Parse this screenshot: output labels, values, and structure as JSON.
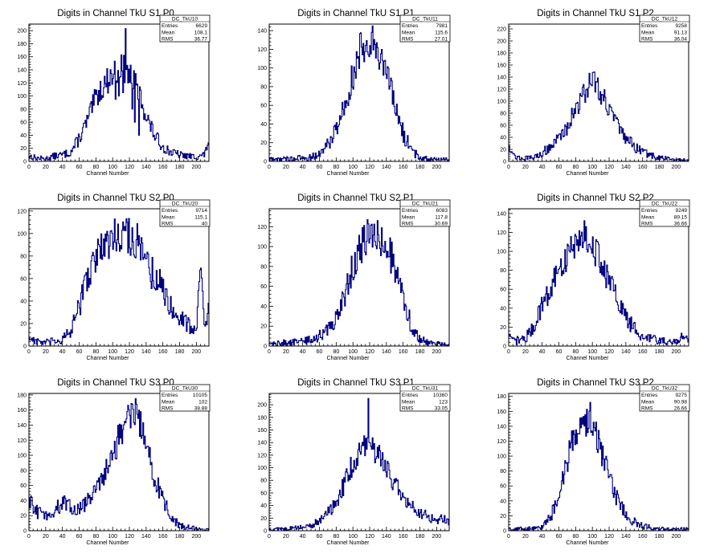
{
  "panel_titles": [
    "Digits in Channel TkU S1 P0",
    "Digits in Channel TkU S1 P1",
    "Digits in Channel TkU S1 P2",
    "Digits in Channel TkU S2 P0",
    "Digits in Channel TkU S2 P1",
    "Digits in Channel TkU S2 P2",
    "Digits in Channel TkU S3 P0",
    "Digits in Channel TkU S3 P1",
    "Digits in Channel TkU S3 P2"
  ],
  "x_axis_label": "Channel Number",
  "stat_labels": {
    "entries": "Entries",
    "mean": "Mean",
    "rms": "RMS"
  },
  "colors": {
    "line": "#000080",
    "frame": "#000000",
    "background": "#ffffff"
  },
  "chart_data": [
    {
      "type": "histogram",
      "title": "Digits in Channel TkU S1 P0",
      "xlabel": "Channel Number",
      "stats": {
        "name": "DC_TkU10",
        "entries": "6629",
        "mean": "108.1",
        "rms": "36.77"
      },
      "xlim": [
        0,
        215
      ],
      "ylim": [
        0,
        210
      ],
      "xticks": [
        0,
        20,
        40,
        60,
        80,
        100,
        120,
        140,
        160,
        180,
        200
      ],
      "yticks": [
        0,
        20,
        40,
        60,
        80,
        100,
        120,
        140,
        160,
        180,
        200
      ],
      "profile": [
        [
          0,
          8
        ],
        [
          10,
          5
        ],
        [
          20,
          4
        ],
        [
          30,
          8
        ],
        [
          40,
          10
        ],
        [
          50,
          14
        ],
        [
          60,
          35
        ],
        [
          70,
          62
        ],
        [
          80,
          98
        ],
        [
          90,
          118
        ],
        [
          100,
          132
        ],
        [
          110,
          145
        ],
        [
          120,
          135
        ],
        [
          130,
          110
        ],
        [
          140,
          70
        ],
        [
          150,
          40
        ],
        [
          160,
          22
        ],
        [
          170,
          14
        ],
        [
          180,
          10
        ],
        [
          190,
          8
        ],
        [
          200,
          7
        ],
        [
          210,
          10
        ],
        [
          215,
          35
        ]
      ],
      "spikes": [
        [
          103,
          95
        ],
        [
          107,
          100
        ],
        [
          112,
          105
        ],
        [
          115,
          203
        ],
        [
          118,
          120
        ],
        [
          123,
          80
        ],
        [
          126,
          60
        ],
        [
          131,
          40
        ]
      ]
    },
    {
      "type": "histogram",
      "title": "Digits in Channel TkU S1 P1",
      "xlabel": "Channel Number",
      "stats": {
        "name": "DC_TkU11",
        "entries": "7981",
        "mean": "115.6",
        "rms": "27.01"
      },
      "xlim": [
        0,
        215
      ],
      "ylim": [
        0,
        147
      ],
      "xticks": [
        0,
        20,
        40,
        60,
        80,
        100,
        120,
        140,
        160,
        180,
        200
      ],
      "yticks": [
        0,
        20,
        40,
        60,
        80,
        100,
        120,
        140
      ],
      "profile": [
        [
          0,
          2
        ],
        [
          30,
          3
        ],
        [
          50,
          4
        ],
        [
          60,
          8
        ],
        [
          70,
          18
        ],
        [
          80,
          35
        ],
        [
          90,
          60
        ],
        [
          100,
          92
        ],
        [
          110,
          122
        ],
        [
          120,
          132
        ],
        [
          130,
          122
        ],
        [
          140,
          92
        ],
        [
          150,
          60
        ],
        [
          160,
          30
        ],
        [
          170,
          12
        ],
        [
          180,
          4
        ],
        [
          200,
          2
        ],
        [
          215,
          2
        ]
      ],
      "spikes": []
    },
    {
      "type": "histogram",
      "title": "Digits in Channel TkU S1 P2",
      "xlabel": "Channel Number",
      "stats": {
        "name": "DC_TkU12",
        "entries": "9258",
        "mean": "91.13",
        "rms": "36.04"
      },
      "xlim": [
        0,
        215
      ],
      "ylim": [
        0,
        228
      ],
      "xticks": [
        0,
        20,
        40,
        60,
        80,
        100,
        120,
        140,
        160,
        180,
        200
      ],
      "yticks": [
        0,
        20,
        40,
        60,
        80,
        100,
        120,
        140,
        160,
        180,
        200,
        220
      ],
      "profile": [
        [
          0,
          30
        ],
        [
          5,
          12
        ],
        [
          10,
          6
        ],
        [
          20,
          5
        ],
        [
          30,
          6
        ],
        [
          40,
          14
        ],
        [
          50,
          25
        ],
        [
          60,
          38
        ],
        [
          70,
          58
        ],
        [
          80,
          88
        ],
        [
          90,
          112
        ],
        [
          100,
          140
        ],
        [
          110,
          115
        ],
        [
          120,
          90
        ],
        [
          130,
          58
        ],
        [
          140,
          38
        ],
        [
          150,
          25
        ],
        [
          160,
          15
        ],
        [
          170,
          10
        ],
        [
          180,
          6
        ],
        [
          200,
          3
        ],
        [
          215,
          2
        ]
      ],
      "spikes": []
    },
    {
      "type": "histogram",
      "title": "Digits in Channel TkU S2 P0",
      "xlabel": "Channel Number",
      "stats": {
        "name": "DC_TkU20",
        "entries": "9714",
        "mean": "115.1",
        "rms": "40"
      },
      "xlim": [
        0,
        215
      ],
      "ylim": [
        0,
        122
      ],
      "xticks": [
        0,
        20,
        40,
        60,
        80,
        100,
        120,
        140,
        160,
        180,
        200
      ],
      "yticks": [
        0,
        20,
        40,
        60,
        80,
        100,
        120
      ],
      "profile": [
        [
          0,
          8
        ],
        [
          10,
          4
        ],
        [
          20,
          3
        ],
        [
          30,
          4
        ],
        [
          40,
          6
        ],
        [
          50,
          12
        ],
        [
          60,
          35
        ],
        [
          70,
          62
        ],
        [
          80,
          80
        ],
        [
          90,
          88
        ],
        [
          100,
          96
        ],
        [
          110,
          103
        ],
        [
          120,
          98
        ],
        [
          130,
          92
        ],
        [
          140,
          72
        ],
        [
          150,
          62
        ],
        [
          160,
          52
        ],
        [
          170,
          35
        ],
        [
          180,
          25
        ],
        [
          190,
          20
        ],
        [
          200,
          15
        ],
        [
          205,
          70
        ],
        [
          210,
          20
        ],
        [
          215,
          30
        ]
      ],
      "spikes": [
        [
          93,
          102
        ]
      ]
    },
    {
      "type": "histogram",
      "title": "Digits in Channel TkU S2 P1",
      "xlabel": "Channel Number",
      "stats": {
        "name": "DC_TkU21",
        "entries": "6083",
        "mean": "117.8",
        "rms": "30.69"
      },
      "xlim": [
        0,
        215
      ],
      "ylim": [
        0,
        138
      ],
      "xticks": [
        0,
        20,
        40,
        60,
        80,
        100,
        120,
        140,
        160,
        180,
        200
      ],
      "yticks": [
        0,
        20,
        40,
        60,
        80,
        100,
        120
      ],
      "profile": [
        [
          0,
          2
        ],
        [
          30,
          4
        ],
        [
          50,
          6
        ],
        [
          60,
          10
        ],
        [
          70,
          16
        ],
        [
          80,
          28
        ],
        [
          90,
          50
        ],
        [
          100,
          80
        ],
        [
          110,
          100
        ],
        [
          120,
          112
        ],
        [
          130,
          110
        ],
        [
          140,
          102
        ],
        [
          150,
          80
        ],
        [
          160,
          48
        ],
        [
          170,
          20
        ],
        [
          180,
          6
        ],
        [
          200,
          2
        ],
        [
          215,
          2
        ]
      ],
      "spikes": []
    },
    {
      "type": "histogram",
      "title": "Digits in Channel TkU S2 P2",
      "xlabel": "Channel Number",
      "stats": {
        "name": "DC_TkU22",
        "entries": "9249",
        "mean": "89.15",
        "rms": "36.66"
      },
      "xlim": [
        0,
        215
      ],
      "ylim": [
        0,
        145
      ],
      "xticks": [
        0,
        20,
        40,
        60,
        80,
        100,
        120,
        140,
        160,
        180,
        200
      ],
      "yticks": [
        0,
        20,
        40,
        60,
        80,
        100,
        120,
        140
      ],
      "profile": [
        [
          0,
          10
        ],
        [
          5,
          5
        ],
        [
          10,
          6
        ],
        [
          20,
          8
        ],
        [
          30,
          20
        ],
        [
          40,
          45
        ],
        [
          50,
          60
        ],
        [
          60,
          78
        ],
        [
          70,
          95
        ],
        [
          80,
          112
        ],
        [
          90,
          118
        ],
        [
          100,
          108
        ],
        [
          110,
          88
        ],
        [
          120,
          68
        ],
        [
          130,
          48
        ],
        [
          140,
          30
        ],
        [
          150,
          18
        ],
        [
          160,
          10
        ],
        [
          180,
          6
        ],
        [
          200,
          4
        ],
        [
          210,
          12
        ],
        [
          215,
          4
        ]
      ],
      "spikes": []
    },
    {
      "type": "histogram",
      "title": "Digits in Channel TkU S3 P0",
      "xlabel": "Channel Number",
      "stats": {
        "name": "DC_TkU30",
        "entries": "10105",
        "mean": "102",
        "rms": "38.88"
      },
      "xlim": [
        0,
        215
      ],
      "ylim": [
        0,
        182
      ],
      "xticks": [
        0,
        20,
        40,
        60,
        80,
        100,
        120,
        140,
        160,
        180,
        200
      ],
      "yticks": [
        0,
        20,
        40,
        60,
        80,
        100,
        120,
        140,
        160,
        180
      ],
      "profile": [
        [
          0,
          40
        ],
        [
          10,
          25
        ],
        [
          20,
          20
        ],
        [
          30,
          25
        ],
        [
          40,
          38
        ],
        [
          50,
          30
        ],
        [
          60,
          28
        ],
        [
          70,
          40
        ],
        [
          80,
          52
        ],
        [
          90,
          75
        ],
        [
          100,
          105
        ],
        [
          110,
          130
        ],
        [
          120,
          155
        ],
        [
          130,
          148
        ],
        [
          140,
          118
        ],
        [
          150,
          72
        ],
        [
          160,
          42
        ],
        [
          170,
          18
        ],
        [
          180,
          6
        ],
        [
          200,
          3
        ],
        [
          215,
          2
        ]
      ],
      "spikes": [
        [
          104,
          95
        ],
        [
          127,
          175
        ],
        [
          148,
          68
        ],
        [
          151,
          60
        ]
      ]
    },
    {
      "type": "histogram",
      "title": "Digits in Channel TkU S3 P1",
      "xlabel": "Channel Number",
      "stats": {
        "name": "DC_TkU31",
        "entries": "10360",
        "mean": "123",
        "rms": "33.05"
      },
      "xlim": [
        0,
        215
      ],
      "ylim": [
        0,
        218
      ],
      "xticks": [
        0,
        20,
        40,
        60,
        80,
        100,
        120,
        140,
        160,
        180,
        200
      ],
      "yticks": [
        0,
        20,
        40,
        60,
        80,
        100,
        120,
        140,
        160,
        180,
        200
      ],
      "profile": [
        [
          0,
          2
        ],
        [
          30,
          4
        ],
        [
          50,
          8
        ],
        [
          60,
          15
        ],
        [
          70,
          28
        ],
        [
          80,
          45
        ],
        [
          90,
          75
        ],
        [
          100,
          108
        ],
        [
          110,
          132
        ],
        [
          120,
          138
        ],
        [
          130,
          122
        ],
        [
          140,
          100
        ],
        [
          150,
          75
        ],
        [
          160,
          55
        ],
        [
          170,
          38
        ],
        [
          180,
          28
        ],
        [
          190,
          22
        ],
        [
          200,
          18
        ],
        [
          210,
          20
        ],
        [
          215,
          10
        ]
      ],
      "spikes": [
        [
          118,
          210
        ]
      ]
    },
    {
      "type": "histogram",
      "title": "Digits in Channel TkU S3 P2",
      "xlabel": "Channel Number",
      "stats": {
        "name": "DC_TkU32",
        "entries": "9275",
        "mean": "90.98",
        "rms": "26.66"
      },
      "xlim": [
        0,
        215
      ],
      "ylim": [
        0,
        184
      ],
      "xticks": [
        0,
        20,
        40,
        60,
        80,
        100,
        120,
        140,
        160,
        180,
        200
      ],
      "yticks": [
        0,
        20,
        40,
        60,
        80,
        100,
        120,
        140,
        160,
        180
      ],
      "profile": [
        [
          0,
          2
        ],
        [
          30,
          3
        ],
        [
          40,
          6
        ],
        [
          50,
          18
        ],
        [
          60,
          45
        ],
        [
          70,
          95
        ],
        [
          80,
          135
        ],
        [
          90,
          148
        ],
        [
          100,
          140
        ],
        [
          110,
          108
        ],
        [
          120,
          70
        ],
        [
          130,
          42
        ],
        [
          140,
          22
        ],
        [
          150,
          12
        ],
        [
          160,
          6
        ],
        [
          170,
          4
        ],
        [
          190,
          2
        ],
        [
          215,
          2
        ]
      ],
      "spikes": [
        [
          97,
          172
        ]
      ]
    }
  ]
}
